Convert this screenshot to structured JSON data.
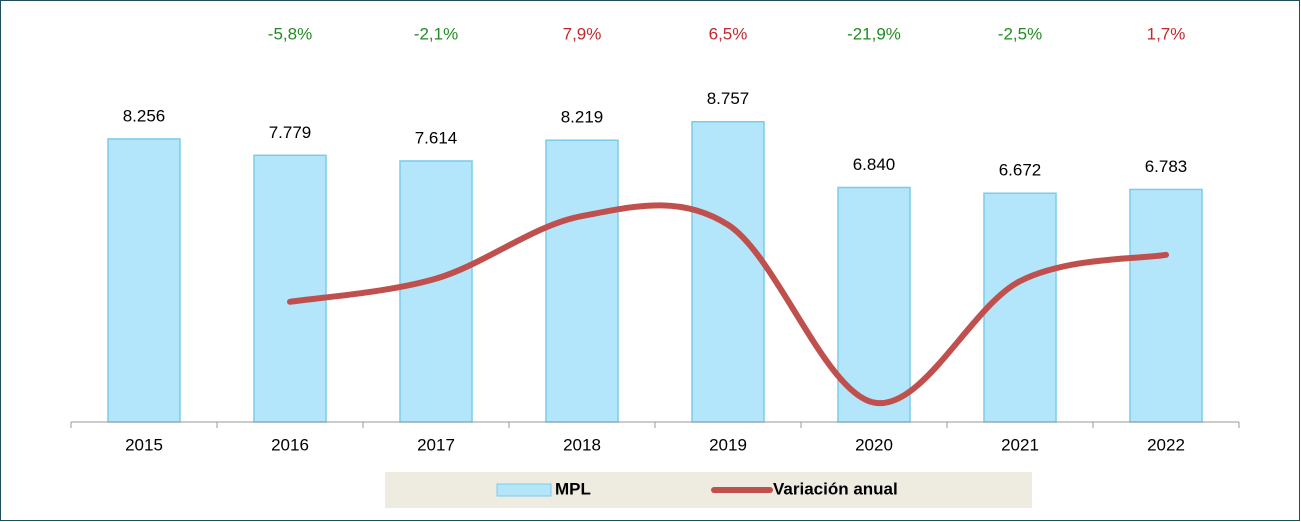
{
  "chart_data": {
    "type": "bar",
    "categories": [
      "2015",
      "2016",
      "2017",
      "2018",
      "2019",
      "2020",
      "2021",
      "2022"
    ],
    "series": [
      {
        "name": "MPL",
        "type": "bar",
        "color": "#b3e6fb",
        "edge_color": "#7ccbe9",
        "values": [
          8256,
          7779,
          7614,
          8219,
          8757,
          6840,
          6672,
          6783
        ],
        "value_labels": [
          "8.256",
          "7.779",
          "7.614",
          "8.219",
          "8.757",
          "6.840",
          "6.672",
          "6.783"
        ]
      },
      {
        "name": "Variación anual",
        "type": "line",
        "color": "#c0504d",
        "axis": "y2",
        "smooth": true,
        "values": [
          null,
          -5.8,
          -2.1,
          7.9,
          6.5,
          -21.9,
          -2.5,
          1.7
        ],
        "value_labels": [
          null,
          "-5,8%",
          "-2,1%",
          "7,9%",
          "6,5%",
          "-21,9%",
          "-2,5%",
          "1,7%"
        ],
        "negative_label_color": "#228b22",
        "positive_label_color": "#c0282d"
      }
    ],
    "ylim": [
      0,
      10500
    ],
    "y2lim": [
      -25,
      32.5
    ],
    "legend": "bottom"
  }
}
